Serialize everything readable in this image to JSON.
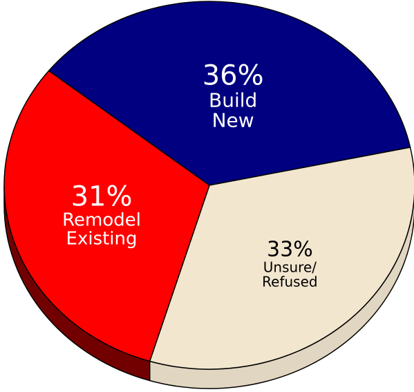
{
  "chart_data": {
    "type": "pie",
    "categories": [
      "Build New",
      "Unsure/ Refused",
      "Remodel Existing"
    ],
    "values": [
      36,
      33,
      31
    ],
    "value_labels": [
      "36%",
      "33%",
      "31%"
    ],
    "colors": [
      "#000080",
      "#f2e6cf",
      "#ff0000"
    ]
  }
}
